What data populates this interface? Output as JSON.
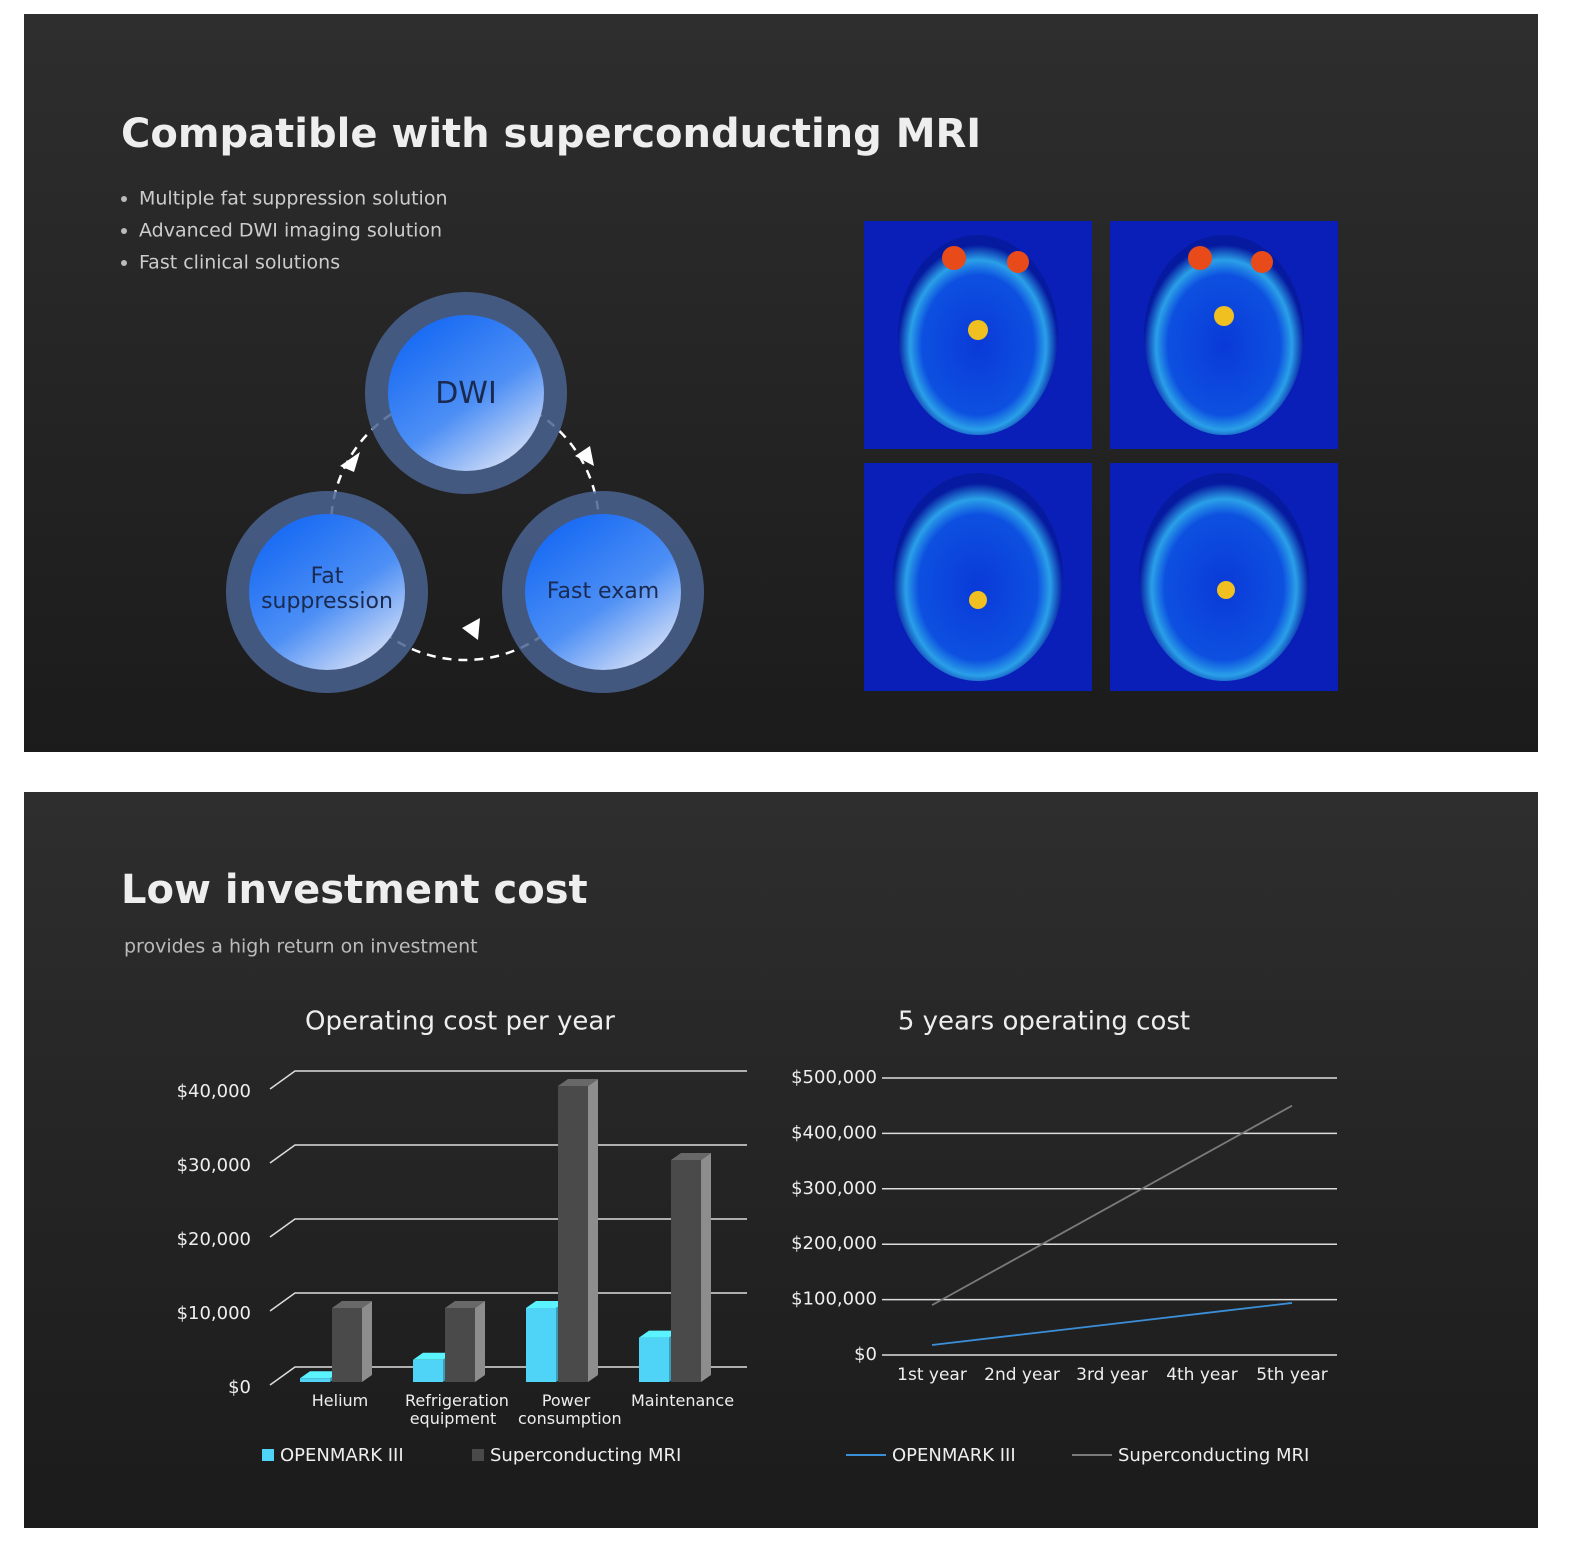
{
  "section1": {
    "title": "Compatible with superconducting MRI",
    "bullets": [
      "Multiple fat suppression solution",
      "Advanced DWI imaging solution",
      "Fast clinical solutions"
    ],
    "cycle": [
      "DWI",
      "Fat suppression",
      "Fast exam"
    ]
  },
  "section2": {
    "title": "Low investment cost",
    "subtitle": "provides a high return on investment"
  },
  "chart_data": [
    {
      "type": "bar",
      "title": "Operating cost per year",
      "categories": [
        "Helium",
        "Refrigeration equipment",
        "Power consumption",
        "Maintenance"
      ],
      "series": [
        {
          "name": "OPENMARK III",
          "color": "#4fd3f7",
          "values": [
            500,
            3000,
            10000,
            6000
          ]
        },
        {
          "name": "Superconducting MRI",
          "color": "#4a4a4a",
          "values": [
            10000,
            10000,
            40000,
            30000
          ]
        }
      ],
      "ylim": [
        0,
        40000
      ],
      "yticks": [
        {
          "value": 0,
          "label": "$0"
        },
        {
          "value": 10000,
          "label": "$10,000"
        },
        {
          "value": 20000,
          "label": "$20,000"
        },
        {
          "value": 30000,
          "label": "$30,000"
        },
        {
          "value": 40000,
          "label": "$40,000"
        }
      ],
      "grid": true,
      "legend": "bottom"
    },
    {
      "type": "line",
      "title": "5 years operating cost",
      "categories": [
        "1st year",
        "2nd year",
        "3rd year",
        "4th year",
        "5th year"
      ],
      "series": [
        {
          "name": "OPENMARK III",
          "color": "#3a8fd8",
          "values": [
            18000,
            37000,
            56000,
            75000,
            94000
          ]
        },
        {
          "name": "Superconducting MRI",
          "color": "#7a7a7a",
          "values": [
            90000,
            180000,
            270000,
            360000,
            450000
          ]
        }
      ],
      "ylim": [
        0,
        500000
      ],
      "yticks": [
        {
          "value": 0,
          "label": "$0"
        },
        {
          "value": 100000,
          "label": "$100,000"
        },
        {
          "value": 200000,
          "label": "$200,000"
        },
        {
          "value": 300000,
          "label": "$300,000"
        },
        {
          "value": 400000,
          "label": "$400,000"
        },
        {
          "value": 500000,
          "label": "$500,000"
        }
      ],
      "grid": true,
      "legend": "bottom"
    }
  ]
}
